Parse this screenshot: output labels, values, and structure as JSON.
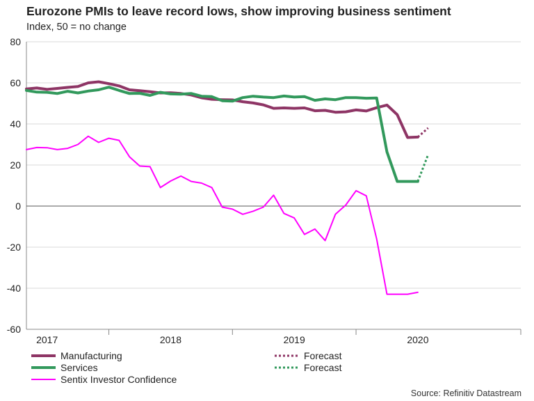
{
  "chart_data": {
    "type": "line",
    "title": "Eurozone PMIs to leave record lows, show improving business sentiment",
    "subtitle": "Index, 50 = no change",
    "source": "Source: Refinitiv Datastream",
    "ylim": [
      -60,
      80
    ],
    "y_ticks": [
      80,
      60,
      40,
      20,
      0,
      -20,
      -40,
      -60
    ],
    "x_start": 2016.833,
    "x_end": 2020.833,
    "x_ticks": [
      {
        "label": "2017",
        "x": 2017.0
      },
      {
        "label": "2018",
        "x": 2018.0
      },
      {
        "label": "2019",
        "x": 2019.0
      },
      {
        "label": "2020",
        "x": 2020.0
      }
    ],
    "year_boundaries": [
      2017.5,
      2018.5,
      2019.5
    ],
    "colors": {
      "manufacturing": "#8e3565",
      "services": "#32995c",
      "sentix": "#ff00ff",
      "zero_line": "#555555",
      "grid": "#d9d9d9",
      "axis": "#888888"
    },
    "series": [
      {
        "name": "Manufacturing",
        "key": "manufacturing",
        "style": "solid",
        "x": [
          2016.833,
          2016.917,
          2017.0,
          2017.083,
          2017.167,
          2017.25,
          2017.333,
          2017.417,
          2017.5,
          2017.583,
          2017.667,
          2017.75,
          2017.833,
          2017.917,
          2018.0,
          2018.083,
          2018.167,
          2018.25,
          2018.333,
          2018.417,
          2018.5,
          2018.583,
          2018.667,
          2018.75,
          2018.833,
          2018.917,
          2019.0,
          2019.083,
          2019.167,
          2019.25,
          2019.333,
          2019.417,
          2019.5,
          2019.583,
          2019.667,
          2019.75,
          2019.833,
          2019.917,
          2020.0
        ],
        "values": [
          57.0,
          57.5,
          56.8,
          57.3,
          57.8,
          58.2,
          60.0,
          60.5,
          59.6,
          58.5,
          56.6,
          56.2,
          55.7,
          55.1,
          55.2,
          54.8,
          54.1,
          52.7,
          52.0,
          51.8,
          51.7,
          50.8,
          50.2,
          49.3,
          47.6,
          47.8,
          47.6,
          47.8,
          46.4,
          46.6,
          45.7,
          45.9,
          46.8,
          46.3,
          47.9,
          49.2,
          44.5,
          33.4,
          33.6
        ]
      },
      {
        "name": "Forecast",
        "key": "manufacturing",
        "style": "dotted",
        "x": [
          2020.0,
          2020.083
        ],
        "values": [
          33.6,
          38.0
        ]
      },
      {
        "name": "Services",
        "key": "services",
        "style": "solid",
        "x": [
          2016.833,
          2016.917,
          2017.0,
          2017.083,
          2017.167,
          2017.25,
          2017.333,
          2017.417,
          2017.5,
          2017.583,
          2017.667,
          2017.75,
          2017.833,
          2017.917,
          2018.0,
          2018.083,
          2018.167,
          2018.25,
          2018.333,
          2018.417,
          2018.5,
          2018.583,
          2018.667,
          2018.75,
          2018.833,
          2018.917,
          2019.0,
          2019.083,
          2019.167,
          2019.25,
          2019.333,
          2019.417,
          2019.5,
          2019.583,
          2019.667,
          2019.75,
          2019.833,
          2019.917,
          2020.0
        ],
        "values": [
          56.3,
          55.5,
          55.4,
          54.8,
          55.9,
          55.1,
          56.0,
          56.6,
          57.9,
          56.3,
          54.8,
          54.9,
          53.9,
          55.4,
          54.6,
          54.5,
          54.8,
          53.5,
          53.3,
          51.3,
          51.1,
          52.8,
          53.5,
          53.1,
          52.8,
          53.6,
          53.1,
          53.3,
          51.5,
          52.2,
          51.8,
          52.8,
          52.8,
          52.5,
          52.6,
          26.4,
          12.0,
          12.0,
          12.0
        ]
      },
      {
        "name": "Forecast",
        "key": "services",
        "style": "dotted",
        "x": [
          2020.0,
          2020.083
        ],
        "values": [
          12.0,
          25.0
        ]
      },
      {
        "name": "Sentix Investor Confidence",
        "key": "sentix",
        "style": "solid",
        "x": [
          2016.833,
          2016.917,
          2017.0,
          2017.083,
          2017.167,
          2017.25,
          2017.333,
          2017.417,
          2017.5,
          2017.583,
          2017.667,
          2017.75,
          2017.833,
          2017.917,
          2018.0,
          2018.083,
          2018.167,
          2018.25,
          2018.333,
          2018.417,
          2018.5,
          2018.583,
          2018.667,
          2018.75,
          2018.833,
          2018.917,
          2019.0,
          2019.083,
          2019.167,
          2019.25,
          2019.333,
          2019.417,
          2019.5,
          2019.583,
          2019.667,
          2019.75,
          2019.833,
          2019.917,
          2020.0
        ],
        "values": [
          27.5,
          28.5,
          28.4,
          27.5,
          28.1,
          30.0,
          34.0,
          31.0,
          33.0,
          32.0,
          24.0,
          19.5,
          19.2,
          9.0,
          12.2,
          14.6,
          12.0,
          11.2,
          9.0,
          -0.5,
          -1.5,
          -4.0,
          -2.5,
          -0.5,
          5.3,
          -3.6,
          -5.8,
          -13.8,
          -11.2,
          -16.8,
          -4.0,
          0.5,
          7.5,
          5.0,
          -16.0,
          -42.9,
          -42.9,
          -42.9,
          -42.0
        ]
      }
    ],
    "legend": [
      {
        "label": "Manufacturing",
        "key": "manufacturing",
        "style": "solid"
      },
      {
        "label": "Services",
        "key": "services",
        "style": "solid"
      },
      {
        "label": "Sentix Investor Confidence",
        "key": "sentix",
        "style": "solid"
      },
      {
        "label": "Forecast",
        "key": "manufacturing",
        "style": "dotted"
      },
      {
        "label": "Forecast",
        "key": "services",
        "style": "dotted"
      }
    ]
  }
}
